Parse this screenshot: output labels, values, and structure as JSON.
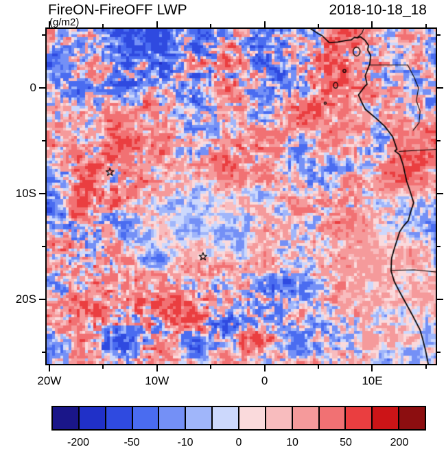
{
  "titles": {
    "left": "FireON-FireOFF LWP",
    "units": "(g/m2)",
    "right": "2018-10-18_18"
  },
  "chart_data": {
    "type": "heatmap",
    "title": "FireON-FireOFF LWP",
    "units": "g/m2",
    "timestamp": "2018-10-18_18",
    "description": "Map of the liquid water path difference (FireON minus FireOFF simulation) over the southeast Atlantic and southwestern Africa, pixelated red/blue difference field with coastlines, two island star markers (Ascension, St Helena) and a discrete blue-white-red labelbar.",
    "extent": {
      "lon_min": -20.25,
      "lon_max": 15.9,
      "lat_top": 5.6,
      "lat_bottom": -26.1
    },
    "x_axis": {
      "tick_labels": [
        {
          "label": "20W",
          "lon": -20
        },
        {
          "label": "10W",
          "lon": -10
        },
        {
          "label": "0",
          "lon": 0
        },
        {
          "label": "10E",
          "lon": 10
        }
      ],
      "minor_ticks_lon": [
        -15,
        -5,
        5,
        15
      ]
    },
    "y_axis": {
      "tick_labels": [
        {
          "label": "0",
          "lat": 0
        },
        {
          "label": "10S",
          "lat": -10
        },
        {
          "label": "20S",
          "lat": -20
        }
      ],
      "minor_ticks_lat": [
        5,
        -5,
        -15,
        -25
      ]
    },
    "colorbar": {
      "bin_edges": [
        -200,
        -100,
        -50,
        -25,
        -10,
        -5,
        0,
        5,
        10,
        25,
        50,
        100,
        200
      ],
      "colors": [
        "#1a1689",
        "#2030c8",
        "#2f4ae0",
        "#4a6cf0",
        "#7490f6",
        "#a0b6fa",
        "#ccd8fc",
        "#fadadc",
        "#f8bcbe",
        "#f59a9b",
        "#f17173",
        "#ea3e40",
        "#cc1417",
        "#8c0e10"
      ],
      "tick_labels": [
        "-200",
        "-50",
        "-10",
        "0",
        "10",
        "50",
        "200"
      ],
      "tick_edge_index": [
        1,
        3,
        5,
        7,
        9,
        11,
        13
      ]
    },
    "overlays": {
      "coastline": [
        [
          4.3,
          5.6
        ],
        [
          4.9,
          5.2
        ],
        [
          5.35,
          4.95
        ],
        [
          6.0,
          4.3
        ],
        [
          6.8,
          4.35
        ],
        [
          7.6,
          4.5
        ],
        [
          8.05,
          4.55
        ],
        [
          8.35,
          4.8
        ],
        [
          8.6,
          4.75
        ],
        [
          8.9,
          4.85
        ],
        [
          9.35,
          4.5
        ],
        [
          9.65,
          4.05
        ],
        [
          9.58,
          3.6
        ],
        [
          9.85,
          3.1
        ],
        [
          9.78,
          2.3
        ],
        [
          9.35,
          1.15
        ],
        [
          9.52,
          0.35
        ],
        [
          9.3,
          0.15
        ],
        [
          8.72,
          -0.65
        ],
        [
          9.05,
          -1.4
        ],
        [
          9.35,
          -2.0
        ],
        [
          10.4,
          -2.9
        ],
        [
          11.15,
          -3.6
        ],
        [
          11.9,
          -4.6
        ],
        [
          12.3,
          -5.8
        ],
        [
          12.1,
          -5.95
        ],
        [
          12.55,
          -6.3
        ],
        [
          12.85,
          -7.2
        ],
        [
          13.2,
          -8.8
        ],
        [
          13.5,
          -9.7
        ],
        [
          13.85,
          -10.85
        ],
        [
          13.55,
          -11.8
        ],
        [
          13.35,
          -12.55
        ],
        [
          12.95,
          -13.0
        ],
        [
          12.55,
          -13.6
        ],
        [
          12.3,
          -14.4
        ],
        [
          12.05,
          -15.2
        ],
        [
          11.8,
          -16.1
        ],
        [
          11.75,
          -17.3
        ],
        [
          12.05,
          -18.3
        ],
        [
          12.45,
          -19.1
        ],
        [
          13.15,
          -20.4
        ],
        [
          13.85,
          -21.7
        ],
        [
          14.45,
          -22.9
        ],
        [
          14.7,
          -23.8
        ],
        [
          14.95,
          -24.8
        ],
        [
          15.2,
          -26.1
        ]
      ],
      "borders": [
        [
          [
            8.6,
            4.75
          ],
          [
            9.05,
            5.2
          ],
          [
            9.2,
            5.6
          ]
        ],
        [
          [
            9.78,
            2.17
          ],
          [
            13.3,
            2.17
          ]
        ],
        [
          [
            13.3,
            2.17
          ],
          [
            13.9,
            1.0
          ],
          [
            14.3,
            0.0
          ],
          [
            14.1,
            -1.2
          ],
          [
            14.45,
            -2.2
          ],
          [
            14.35,
            -3.3
          ],
          [
            13.8,
            -4.0
          ]
        ],
        [
          [
            12.5,
            -6.0
          ],
          [
            15.9,
            -5.8
          ]
        ],
        [
          [
            11.75,
            -17.25
          ],
          [
            13.9,
            -17.2
          ],
          [
            15.9,
            -17.4
          ]
        ]
      ],
      "islands": [
        {
          "name": "Bioko",
          "lon": 8.55,
          "lat": 3.45,
          "rx": 0.32,
          "ry": 0.42
        },
        {
          "name": "Principe",
          "lon": 7.42,
          "lat": 1.62,
          "rx": 0.14,
          "ry": 0.14
        },
        {
          "name": "Sao Tome",
          "lon": 6.6,
          "lat": 0.25,
          "rx": 0.2,
          "ry": 0.27
        },
        {
          "name": "Annobon",
          "lon": 5.63,
          "lat": -1.43,
          "rx": 0.1,
          "ry": 0.1
        }
      ],
      "markers": [
        {
          "name": "Ascension Island",
          "lon": -14.37,
          "lat": -7.95,
          "symbol": "star"
        },
        {
          "name": "St Helena",
          "lon": -5.72,
          "lat": -15.95,
          "symbol": "star"
        }
      ]
    },
    "texture": {
      "seed": 11,
      "freq": 0.3,
      "speckle_freq": 2.6,
      "scale": 120,
      "speckle_scale": 55,
      "base_amp": 0.5,
      "base_bias": 2.5,
      "blobs": [
        {
          "lon": -7,
          "lat": -13,
          "sx": 8,
          "sy": 5,
          "amp": -0.34,
          "bias": -9
        },
        {
          "lon": 10,
          "lat": -14,
          "sx": 5,
          "sy": 7,
          "amp": -0.3,
          "bias": 2
        },
        {
          "lon": 14,
          "lat": -22,
          "sx": 6,
          "sy": 6,
          "amp": -0.22,
          "bias": 0
        },
        {
          "lon": -5,
          "lat": 2.5,
          "sx": 14,
          "sy": 3.5,
          "amp": 0.55,
          "bias": 0
        },
        {
          "lon": -14,
          "lat": -7.5,
          "sx": 4,
          "sy": 2.5,
          "amp": 0.25,
          "bias": 28
        },
        {
          "lon": -3,
          "lat": -6.5,
          "sx": 5,
          "sy": 2.3,
          "amp": 0.15,
          "bias": 22
        },
        {
          "lon": -16.5,
          "lat": -14,
          "sx": 4,
          "sy": 5,
          "amp": 0.45,
          "bias": 5
        },
        {
          "lon": -5,
          "lat": -21,
          "sx": 10,
          "sy": 3,
          "amp": 0.4,
          "bias": 6
        },
        {
          "lon": 7.5,
          "lat": -11,
          "sx": 3,
          "sy": 3.5,
          "amp": 0.3,
          "bias": 18
        },
        {
          "lon": 12,
          "lat": -7,
          "sx": 2.5,
          "sy": 2,
          "amp": 0.2,
          "bias": 10
        },
        {
          "lon": -12,
          "lat": -23.5,
          "sx": 6,
          "sy": 3,
          "amp": 0.35,
          "bias": -2
        }
      ]
    }
  }
}
